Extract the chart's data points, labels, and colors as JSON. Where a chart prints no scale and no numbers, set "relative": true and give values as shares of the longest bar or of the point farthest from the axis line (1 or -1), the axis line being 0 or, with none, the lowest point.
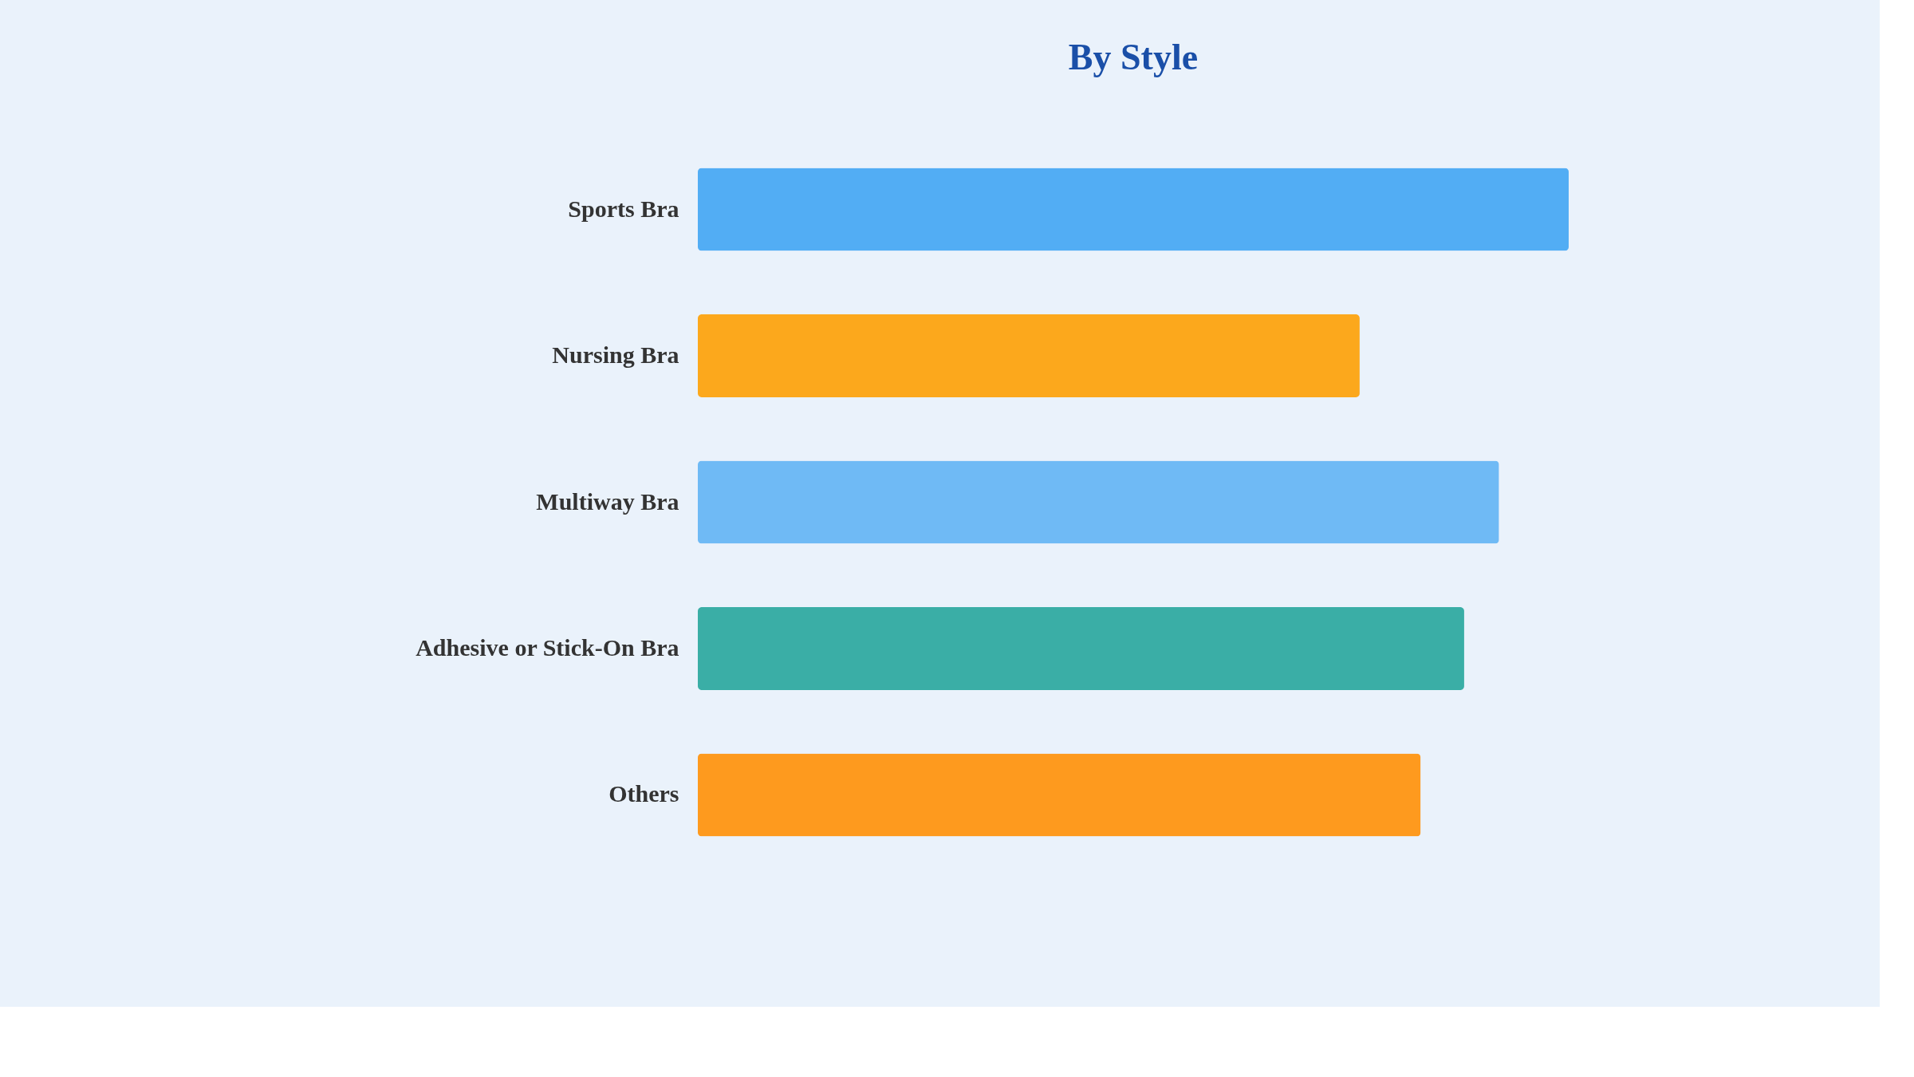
{
  "chart_data": {
    "type": "bar",
    "orientation": "horizontal",
    "relative": true,
    "title": "By Style",
    "categories": [
      "Sports Bra",
      "Nursing Bra",
      "Multiway Bra",
      "Adhesive or Stick-On Bra",
      "Others"
    ],
    "values": [
      1,
      0.76,
      0.92,
      0.88,
      0.83
    ],
    "colors": [
      "#52adf4",
      "#fca81c",
      "#6fbaf5",
      "#3aaea6",
      "#fe9a1e"
    ],
    "legend": false
  }
}
